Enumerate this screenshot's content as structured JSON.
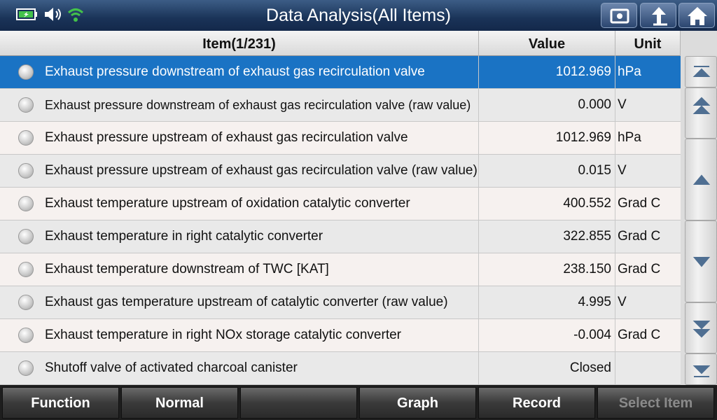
{
  "header": {
    "title": "Data Analysis(All Items)"
  },
  "table": {
    "columns": [
      "Item(1/231)",
      "Value",
      "Unit"
    ],
    "rows": [
      {
        "item": "Exhaust pressure downstream of exhaust gas recirculation valve",
        "value": "1012.969",
        "unit": "hPa"
      },
      {
        "item": "Exhaust pressure downstream of exhaust gas recirculation valve (raw value)",
        "value": "0.000",
        "unit": "V"
      },
      {
        "item": "Exhaust pressure upstream of exhaust gas recirculation valve",
        "value": "1012.969",
        "unit": "hPa"
      },
      {
        "item": "Exhaust pressure upstream of exhaust gas recirculation valve (raw value)",
        "value": "0.015",
        "unit": "V"
      },
      {
        "item": "Exhaust temperature upstream of oxidation catalytic converter",
        "value": "400.552",
        "unit": "Grad C"
      },
      {
        "item": "Exhaust temperature in right catalytic converter",
        "value": "322.855",
        "unit": "Grad C"
      },
      {
        "item": "Exhaust temperature downstream of TWC [KAT]",
        "value": "238.150",
        "unit": "Grad C"
      },
      {
        "item": "Exhaust gas temperature upstream of catalytic converter (raw value)",
        "value": "4.995",
        "unit": "V"
      },
      {
        "item": "Exhaust temperature in right NOx storage catalytic converter",
        "value": "-0.004",
        "unit": "Grad C"
      },
      {
        "item": "Shutoff valve of activated charcoal canister",
        "value": "Closed"
      }
    ]
  },
  "footer": {
    "buttons": [
      "Function",
      "Normal",
      "Graph",
      "Record",
      "Select Item"
    ]
  }
}
